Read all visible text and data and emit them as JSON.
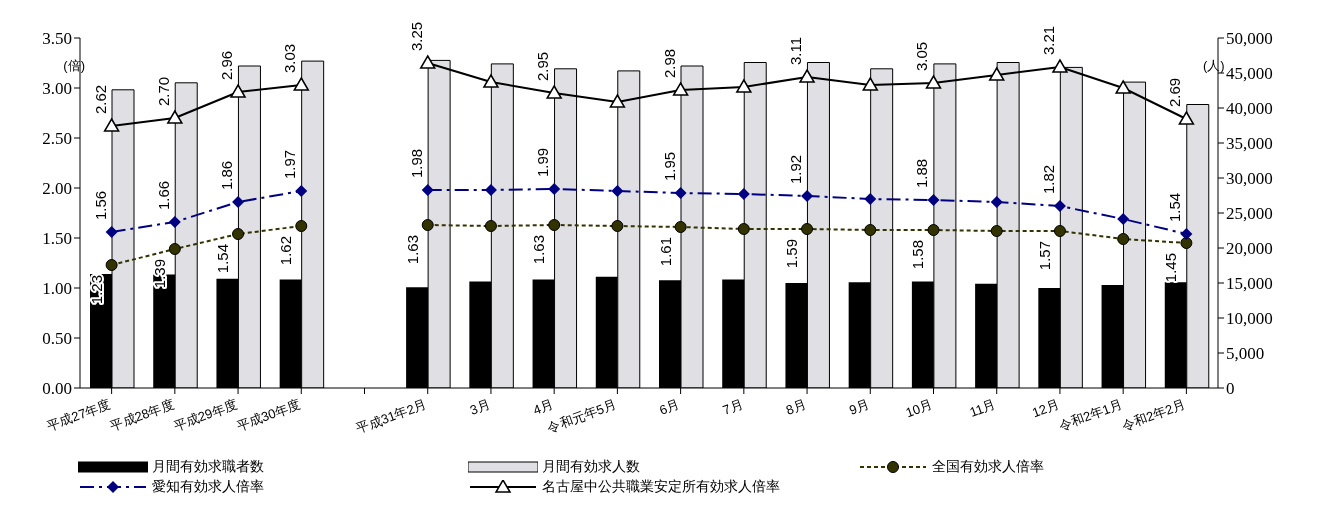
{
  "chart_data": {
    "type": "bar",
    "ylabel": "(倍)",
    "y2label": "(人)",
    "categories": [
      "平成27年度",
      "平成28年度",
      "平成29年度",
      "平成30年度",
      null,
      "平成31年2月",
      "3月",
      "4月",
      "令和元年5月",
      "6月",
      "7月",
      "8月",
      "9月",
      "10月",
      "11月",
      "12月",
      "令和2年1月",
      "令和2年2月"
    ],
    "series": [
      {
        "name": "月間有効求職者数",
        "axis": "y2",
        "color": "#000000",
        "values": [
          16300,
          16200,
          15600,
          15500,
          null,
          14400,
          15200,
          15500,
          15900,
          15400,
          15500,
          15000,
          15100,
          15200,
          14900,
          14300,
          14700,
          15100
        ]
      },
      {
        "name": "月間有効求人数",
        "axis": "y2",
        "color": "#e0e0e4",
        "values": [
          42600,
          43600,
          46000,
          46700,
          null,
          46800,
          46300,
          45600,
          45300,
          46000,
          46500,
          46500,
          45600,
          46300,
          46500,
          45800,
          43700,
          40500
        ]
      },
      {
        "name": "全国有効求人倍率",
        "type": "line",
        "color": "#333300",
        "marker": "circle",
        "line_style": "dashed",
        "values": [
          1.23,
          1.39,
          1.54,
          1.62,
          null,
          1.63,
          1.62,
          1.63,
          1.62,
          1.61,
          1.59,
          1.59,
          1.58,
          1.58,
          1.57,
          1.57,
          1.49,
          1.45
        ],
        "value_labels": [
          "1.23",
          "1.39",
          "1.54",
          "1.62",
          null,
          "1.63",
          null,
          "1.63",
          null,
          "1.61",
          null,
          "1.59",
          null,
          "1.58",
          null,
          "1.57",
          null,
          "1.45"
        ]
      },
      {
        "name": "愛知有効求人倍率",
        "type": "line",
        "color": "#000080",
        "marker": "diamond",
        "line_style": "dashdot",
        "values": [
          1.56,
          1.66,
          1.86,
          1.97,
          null,
          1.98,
          1.98,
          1.99,
          1.97,
          1.95,
          1.94,
          1.92,
          1.89,
          1.88,
          1.86,
          1.82,
          1.69,
          1.54
        ],
        "value_labels": [
          "1.56",
          "1.66",
          "1.86",
          "1.97",
          null,
          "1.98",
          null,
          "1.99",
          null,
          "1.95",
          null,
          "1.92",
          null,
          "1.88",
          null,
          "1.82",
          null,
          "1.54"
        ]
      },
      {
        "name": "名古屋中公共職業安定所有効求人倍率",
        "type": "line",
        "color": "#000000",
        "marker": "triangle",
        "line_style": "solid",
        "values": [
          2.62,
          2.7,
          2.96,
          3.03,
          null,
          3.25,
          3.06,
          2.95,
          2.86,
          2.98,
          3.01,
          3.11,
          3.03,
          3.05,
          3.13,
          3.21,
          3.0,
          2.69
        ],
        "value_labels": [
          "2.62",
          "2.70",
          "2.96",
          "3.03",
          null,
          "3.25",
          null,
          "2.95",
          null,
          "2.98",
          null,
          "3.11",
          null,
          "3.05",
          null,
          "3.21",
          null,
          "2.69"
        ]
      }
    ],
    "ylim": [
      0,
      3.5
    ],
    "yticks": [
      {
        "value": 0,
        "label": "0.00"
      },
      {
        "value": 0.5,
        "label": "0.50"
      },
      {
        "value": 1,
        "label": "1.00"
      },
      {
        "value": 1.5,
        "label": "1.50"
      },
      {
        "value": 2,
        "label": "2.00"
      },
      {
        "value": 2.5,
        "label": "2.50"
      },
      {
        "value": 3,
        "label": "3.00"
      },
      {
        "value": 3.5,
        "label": "3.50"
      }
    ],
    "y2lim": [
      0,
      50000
    ],
    "y2ticks": [
      0,
      {
        "value": 5000,
        "label": "5,000"
      },
      {
        "value": 10000,
        "label": "10,000"
      },
      {
        "value": 15000,
        "label": "15,000"
      },
      {
        "value": 20000,
        "label": "20,000"
      },
      {
        "value": 25000,
        "label": "25,000"
      },
      {
        "value": 30000,
        "label": "30,000"
      },
      {
        "value": 35000,
        "label": "35,000"
      },
      {
        "value": 40000,
        "label": "40,000"
      },
      {
        "value": 45000,
        "label": "45,000"
      },
      {
        "value": 50000,
        "label": "50,000"
      }
    ],
    "grid": false,
    "legend": "bottom"
  }
}
